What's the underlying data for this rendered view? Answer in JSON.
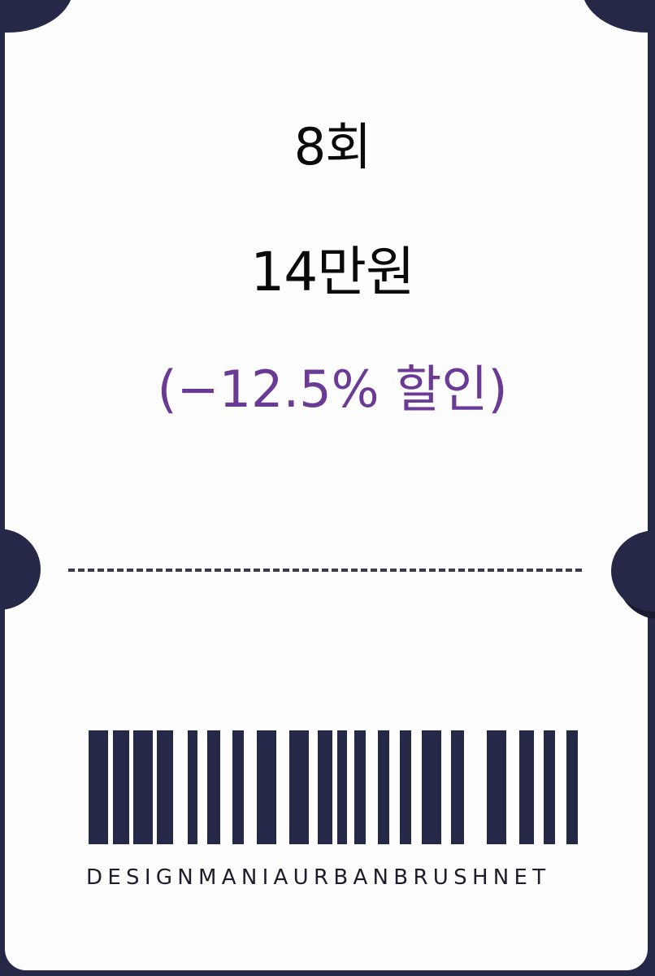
{
  "ticket": {
    "sessions": "8회",
    "price": "14만원",
    "discount": "(−12.5% 할인)"
  },
  "barcode": {
    "text": "DESIGNMANIAURBANBRUSHNET"
  },
  "colors": {
    "frame": "#262848",
    "discount_text": "#6a3a96",
    "bars": "#262848"
  }
}
